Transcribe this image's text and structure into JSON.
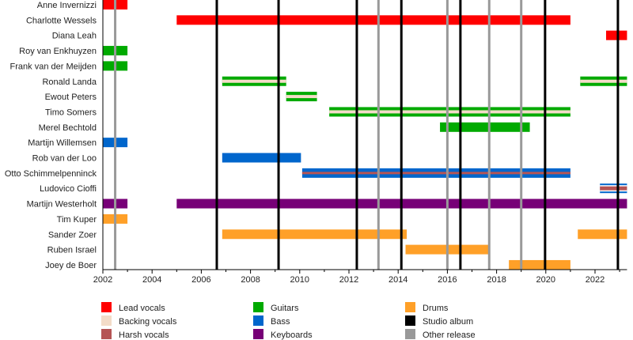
{
  "chart_data": {
    "type": "timeline",
    "title": "",
    "xlim": [
      2002,
      2023.3
    ],
    "x_ticks": [
      2002,
      2004,
      2006,
      2008,
      2010,
      2012,
      2014,
      2016,
      2018,
      2020,
      2022
    ],
    "colors": {
      "lead": "#FF0000",
      "backing": "#F3DCC8",
      "harsh": "#B55555",
      "guitar": "#00AA00",
      "bass": "#0066CC",
      "keys": "#770077",
      "drums": "#FFA028",
      "studio": "#000000",
      "other": "#999999"
    },
    "members": [
      {
        "name": "Anne Invernizzi",
        "periods": [
          {
            "from": 2002,
            "to": 2003,
            "role": "lead"
          }
        ]
      },
      {
        "name": "Charlotte Wessels",
        "periods": [
          {
            "from": 2005,
            "to": 2021.0,
            "role": "lead"
          }
        ]
      },
      {
        "name": "Diana Leah",
        "periods": [
          {
            "from": 2022.45,
            "to": 2023.3,
            "role": "lead"
          }
        ]
      },
      {
        "name": "Roy van Enkhuyzen",
        "periods": [
          {
            "from": 2002,
            "to": 2003,
            "role": "guitar"
          }
        ]
      },
      {
        "name": "Frank van der Meijden",
        "periods": [
          {
            "from": 2002,
            "to": 2003,
            "role": "guitar"
          }
        ]
      },
      {
        "name": "Ronald Landa",
        "periods": [
          {
            "from": 2006.85,
            "to": 2009.45,
            "role": "guitar",
            "stripe": "backing"
          },
          {
            "from": 2021.4,
            "to": 2023.3,
            "role": "guitar",
            "stripe": "backing"
          }
        ]
      },
      {
        "name": "Ewout Peters",
        "periods": [
          {
            "from": 2009.45,
            "to": 2010.7,
            "role": "guitar",
            "stripe": "backing"
          }
        ]
      },
      {
        "name": "Timo Somers",
        "periods": [
          {
            "from": 2011.2,
            "to": 2021.0,
            "role": "guitar",
            "stripe": "backing"
          }
        ]
      },
      {
        "name": "Merel Bechtold",
        "periods": [
          {
            "from": 2015.7,
            "to": 2019.35,
            "role": "guitar"
          }
        ]
      },
      {
        "name": "Martijn Willemsen",
        "periods": [
          {
            "from": 2002,
            "to": 2003,
            "role": "bass"
          }
        ]
      },
      {
        "name": "Rob van der Loo",
        "periods": [
          {
            "from": 2006.85,
            "to": 2010.05,
            "role": "bass"
          }
        ]
      },
      {
        "name": "Otto Schimmelpenninck",
        "periods": [
          {
            "from": 2010.1,
            "to": 2021.0,
            "role": "bass",
            "stripe": "harsh"
          }
        ]
      },
      {
        "name": "Ludovico Cioffi",
        "periods": [
          {
            "from": 2022.2,
            "to": 2023.3,
            "role": "bass",
            "stripe": "harsh",
            "outline": true
          }
        ]
      },
      {
        "name": "Martijn Westerholt",
        "periods": [
          {
            "from": 2002,
            "to": 2003,
            "role": "keys"
          },
          {
            "from": 2005,
            "to": 2023.3,
            "role": "keys"
          }
        ]
      },
      {
        "name": "Tim Kuper",
        "periods": [
          {
            "from": 2002,
            "to": 2003,
            "role": "drums"
          }
        ]
      },
      {
        "name": "Sander Zoer",
        "periods": [
          {
            "from": 2006.85,
            "to": 2014.35,
            "role": "drums"
          },
          {
            "from": 2021.3,
            "to": 2023.3,
            "role": "drums"
          }
        ]
      },
      {
        "name": "Ruben Israel",
        "periods": [
          {
            "from": 2014.3,
            "to": 2017.7,
            "role": "drums"
          }
        ]
      },
      {
        "name": "Joey de Boer",
        "periods": [
          {
            "from": 2018.5,
            "to": 2021.0,
            "role": "drums"
          }
        ]
      }
    ],
    "releases": [
      {
        "year": 2002.5,
        "type": "other"
      },
      {
        "year": 2006.63,
        "type": "studio"
      },
      {
        "year": 2009.14,
        "type": "studio"
      },
      {
        "year": 2012.32,
        "type": "studio"
      },
      {
        "year": 2013.2,
        "type": "other"
      },
      {
        "year": 2014.13,
        "type": "studio"
      },
      {
        "year": 2016.0,
        "type": "other"
      },
      {
        "year": 2016.53,
        "type": "studio"
      },
      {
        "year": 2017.7,
        "type": "other"
      },
      {
        "year": 2019.0,
        "type": "other"
      },
      {
        "year": 2019.97,
        "type": "studio"
      },
      {
        "year": 2022.93,
        "type": "studio"
      }
    ],
    "legend": [
      {
        "key": "lead",
        "label": "Lead vocals"
      },
      {
        "key": "backing",
        "label": "Backing vocals"
      },
      {
        "key": "harsh",
        "label": "Harsh vocals"
      },
      {
        "key": "guitar",
        "label": "Guitars"
      },
      {
        "key": "bass",
        "label": "Bass"
      },
      {
        "key": "keys",
        "label": "Keyboards"
      },
      {
        "key": "drums",
        "label": "Drums"
      },
      {
        "key": "studio",
        "label": "Studio album"
      },
      {
        "key": "other",
        "label": "Other release"
      }
    ],
    "legend_placement": "bottom"
  }
}
